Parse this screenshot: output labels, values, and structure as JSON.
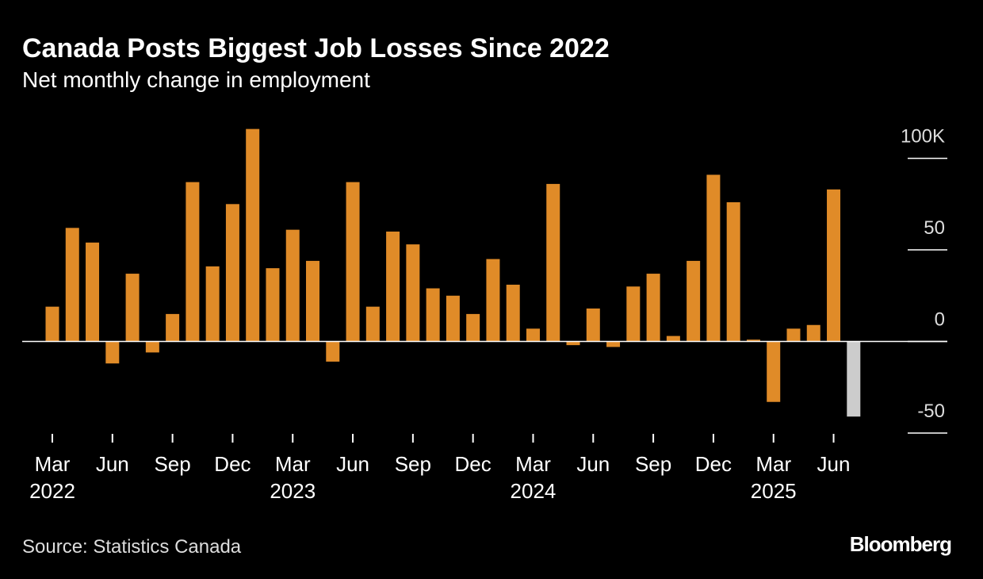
{
  "chart_data": {
    "type": "bar",
    "title": "Canada Posts Biggest Job Losses Since 2022",
    "subtitle": "Net monthly change in employment",
    "source": "Source: Statistics Canada",
    "brand": "Bloomberg",
    "categories": [
      "Mar 2022",
      null,
      null,
      "Jun",
      null,
      null,
      "Sep",
      null,
      null,
      "Dec",
      null,
      null,
      "Mar 2023",
      null,
      null,
      "Jun",
      null,
      null,
      "Sep",
      null,
      null,
      "Dec",
      null,
      null,
      "Mar 2024",
      null,
      null,
      "Jun",
      null,
      null,
      "Sep",
      null,
      null,
      "Dec",
      null,
      null,
      "Mar 2025",
      null,
      null,
      "Jun",
      null
    ],
    "values": [
      19,
      62,
      54,
      -12,
      37,
      -6,
      15,
      87,
      41,
      75,
      116,
      40,
      61,
      44,
      -11,
      87,
      19,
      60,
      53,
      29,
      25,
      15,
      45,
      31,
      7,
      86,
      -2,
      18,
      -3,
      30,
      37,
      3,
      44,
      91,
      76,
      1,
      -33,
      7,
      9,
      83,
      -41
    ],
    "colors": [
      "#e08b28",
      "#e08b28",
      "#e08b28",
      "#e08b28",
      "#e08b28",
      "#e08b28",
      "#e08b28",
      "#e08b28",
      "#e08b28",
      "#e08b28",
      "#e08b28",
      "#e08b28",
      "#e08b28",
      "#e08b28",
      "#e08b28",
      "#e08b28",
      "#e08b28",
      "#e08b28",
      "#e08b28",
      "#e08b28",
      "#e08b28",
      "#e08b28",
      "#e08b28",
      "#e08b28",
      "#e08b28",
      "#e08b28",
      "#e08b28",
      "#e08b28",
      "#e08b28",
      "#e08b28",
      "#e08b28",
      "#e08b28",
      "#e08b28",
      "#e08b28",
      "#e08b28",
      "#e08b28",
      "#e08b28",
      "#e08b28",
      "#e08b28",
      "#e08b28",
      "#cccccc"
    ],
    "ylim": [
      -50,
      118
    ],
    "yticks": [
      {
        "value": 100,
        "label": "100K"
      },
      50,
      0,
      -50
    ]
  }
}
